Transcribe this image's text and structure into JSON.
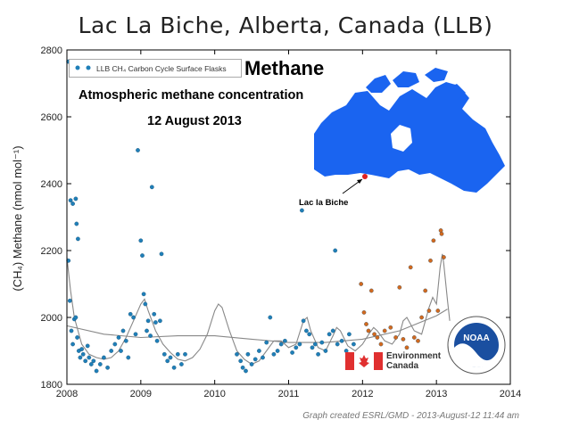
{
  "title": "Lac La Biche, Alberta, Canada (LLB)",
  "annotation": {
    "heading": "Methane",
    "subtitle": "Atmospheric methane concentration",
    "date": "12 August 2013"
  },
  "map": {
    "label": "Lac la Biche",
    "land_color": "#1a64f0"
  },
  "legend": {
    "label": "LLB CH₄ Carbon Cycle Surface Flasks"
  },
  "logos": {
    "env_canada_line1": "Environment",
    "env_canada_line2": "Canada",
    "noaa": "NOAA"
  },
  "credit": "Graph created ESRL/GMD - 2013-August-12 11:44 am",
  "colors": {
    "series1": "#1f7fb8",
    "series2": "#d2691e",
    "trend": "#888888"
  },
  "chart_data": {
    "type": "scatter",
    "title": "Lac La Biche, Alberta, Canada (LLB)",
    "xlabel": "",
    "ylabel": "(CH₄) Methane (nmol mol⁻¹)",
    "xlim": [
      2008,
      2014
    ],
    "ylim": [
      1800,
      2800
    ],
    "xticks": [
      2008,
      2009,
      2010,
      2011,
      2012,
      2013,
      2014
    ],
    "yticks": [
      1800,
      2000,
      2200,
      2400,
      2600,
      2800
    ],
    "grid": false,
    "legend_position": "top-left",
    "series": [
      {
        "name": "LLB CH₄ Carbon Cycle Surface Flasks",
        "color": "#1f7fb8",
        "points": [
          [
            2008.02,
            2765
          ],
          [
            2008.05,
            2350
          ],
          [
            2008.08,
            2340
          ],
          [
            2008.12,
            2355
          ],
          [
            2008.13,
            2280
          ],
          [
            2008.15,
            2235
          ],
          [
            2008.02,
            2170
          ],
          [
            2008.04,
            2050
          ],
          [
            2008.06,
            1960
          ],
          [
            2008.08,
            1920
          ],
          [
            2008.1,
            1995
          ],
          [
            2008.12,
            2000
          ],
          [
            2008.14,
            1940
          ],
          [
            2008.16,
            1900
          ],
          [
            2008.18,
            1880
          ],
          [
            2008.2,
            1905
          ],
          [
            2008.22,
            1890
          ],
          [
            2008.25,
            1870
          ],
          [
            2008.28,
            1915
          ],
          [
            2008.3,
            1880
          ],
          [
            2008.33,
            1860
          ],
          [
            2008.36,
            1870
          ],
          [
            2008.4,
            1840
          ],
          [
            2008.45,
            1860
          ],
          [
            2008.5,
            1880
          ],
          [
            2008.55,
            1850
          ],
          [
            2008.6,
            1900
          ],
          [
            2008.65,
            1920
          ],
          [
            2008.7,
            1940
          ],
          [
            2008.73,
            1900
          ],
          [
            2008.76,
            1960
          ],
          [
            2008.8,
            1930
          ],
          [
            2008.83,
            1880
          ],
          [
            2008.86,
            2010
          ],
          [
            2008.9,
            2000
          ],
          [
            2008.93,
            1950
          ],
          [
            2008.96,
            2500
          ],
          [
            2009.0,
            2230
          ],
          [
            2009.02,
            2185
          ],
          [
            2009.04,
            2070
          ],
          [
            2009.06,
            2040
          ],
          [
            2009.08,
            1960
          ],
          [
            2009.1,
            1990
          ],
          [
            2009.13,
            1945
          ],
          [
            2009.15,
            2390
          ],
          [
            2009.18,
            2010
          ],
          [
            2009.2,
            1985
          ],
          [
            2009.22,
            1930
          ],
          [
            2009.26,
            1990
          ],
          [
            2009.28,
            2190
          ],
          [
            2009.32,
            1890
          ],
          [
            2009.36,
            1870
          ],
          [
            2009.4,
            1880
          ],
          [
            2009.45,
            1850
          ],
          [
            2009.5,
            1890
          ],
          [
            2009.55,
            1860
          ],
          [
            2009.6,
            1890
          ],
          [
            2010.3,
            1890
          ],
          [
            2010.35,
            1870
          ],
          [
            2010.38,
            1850
          ],
          [
            2010.42,
            1840
          ],
          [
            2010.45,
            1890
          ],
          [
            2010.5,
            1860
          ],
          [
            2010.55,
            1875
          ],
          [
            2010.6,
            1900
          ],
          [
            2010.65,
            1880
          ],
          [
            2010.7,
            1925
          ],
          [
            2010.75,
            2000
          ],
          [
            2010.8,
            1890
          ],
          [
            2010.85,
            1900
          ],
          [
            2010.9,
            1920
          ],
          [
            2010.95,
            1930
          ],
          [
            2011.05,
            1895
          ],
          [
            2011.1,
            1910
          ],
          [
            2011.15,
            1920
          ],
          [
            2011.18,
            2320
          ],
          [
            2011.2,
            1990
          ],
          [
            2011.24,
            1960
          ],
          [
            2011.28,
            1950
          ],
          [
            2011.32,
            1910
          ],
          [
            2011.36,
            1920
          ],
          [
            2011.4,
            1890
          ],
          [
            2011.45,
            1925
          ],
          [
            2011.5,
            1900
          ],
          [
            2011.55,
            1950
          ],
          [
            2011.6,
            1960
          ],
          [
            2011.63,
            2200
          ],
          [
            2011.66,
            1920
          ],
          [
            2011.72,
            1930
          ],
          [
            2011.78,
            1900
          ],
          [
            2011.82,
            1950
          ],
          [
            2011.88,
            1920
          ],
          [
            2011.92,
            1880
          ]
        ]
      },
      {
        "name": "",
        "color": "#d2691e",
        "points": [
          [
            2011.98,
            2100
          ],
          [
            2012.02,
            2015
          ],
          [
            2012.05,
            1980
          ],
          [
            2012.08,
            1960
          ],
          [
            2012.12,
            2080
          ],
          [
            2012.16,
            1950
          ],
          [
            2012.2,
            1940
          ],
          [
            2012.25,
            1920
          ],
          [
            2012.3,
            1960
          ],
          [
            2012.38,
            1970
          ],
          [
            2012.45,
            1940
          ],
          [
            2012.5,
            2090
          ],
          [
            2012.55,
            1935
          ],
          [
            2012.6,
            1910
          ],
          [
            2012.65,
            2150
          ],
          [
            2012.7,
            1940
          ],
          [
            2012.75,
            1930
          ],
          [
            2012.8,
            2000
          ],
          [
            2012.85,
            2080
          ],
          [
            2012.9,
            2020
          ],
          [
            2012.92,
            2170
          ],
          [
            2012.96,
            2230
          ],
          [
            2013.02,
            2020
          ],
          [
            2013.06,
            2260
          ],
          [
            2013.07,
            2250
          ],
          [
            2013.1,
            2180
          ]
        ]
      }
    ],
    "trend": {
      "color": "#888888",
      "points": [
        [
          2008.0,
          2180
        ],
        [
          2008.05,
          2080
        ],
        [
          2008.1,
          2000
        ],
        [
          2008.2,
          1920
        ],
        [
          2008.3,
          1890
        ],
        [
          2008.4,
          1880
        ],
        [
          2008.5,
          1875
        ],
        [
          2008.6,
          1880
        ],
        [
          2008.7,
          1900
        ],
        [
          2008.8,
          1940
        ],
        [
          2008.9,
          1990
        ],
        [
          2009.0,
          2040
        ],
        [
          2009.05,
          2055
        ],
        [
          2009.1,
          2020
        ],
        [
          2009.2,
          1960
        ],
        [
          2009.3,
          1920
        ],
        [
          2009.4,
          1895
        ],
        [
          2009.5,
          1875
        ],
        [
          2009.6,
          1870
        ],
        [
          2009.7,
          1880
        ],
        [
          2009.8,
          1905
        ],
        [
          2009.9,
          1950
        ],
        [
          2010.0,
          2020
        ],
        [
          2010.05,
          2040
        ],
        [
          2010.1,
          2030
        ],
        [
          2010.2,
          1960
        ],
        [
          2010.3,
          1900
        ],
        [
          2010.4,
          1875
        ],
        [
          2010.5,
          1860
        ],
        [
          2010.6,
          1870
        ],
        [
          2010.7,
          1900
        ],
        [
          2010.8,
          1930
        ],
        [
          2010.9,
          1930
        ],
        [
          2011.0,
          1910
        ],
        [
          2011.1,
          1920
        ],
        [
          2011.2,
          1990
        ],
        [
          2011.25,
          2000
        ],
        [
          2011.3,
          1960
        ],
        [
          2011.4,
          1910
        ],
        [
          2011.5,
          1900
        ],
        [
          2011.6,
          1945
        ],
        [
          2011.65,
          1970
        ],
        [
          2011.7,
          1960
        ],
        [
          2011.8,
          1915
        ],
        [
          2011.9,
          1900
        ],
        [
          2012.0,
          1920
        ],
        [
          2012.1,
          1955
        ],
        [
          2012.15,
          1970
        ],
        [
          2012.2,
          1960
        ],
        [
          2012.3,
          1930
        ],
        [
          2012.4,
          1920
        ],
        [
          2012.5,
          1950
        ],
        [
          2012.55,
          1990
        ],
        [
          2012.6,
          2000
        ],
        [
          2012.7,
          1960
        ],
        [
          2012.8,
          1950
        ],
        [
          2012.9,
          2030
        ],
        [
          2012.95,
          2060
        ],
        [
          2013.0,
          2040
        ],
        [
          2013.05,
          2150
        ],
        [
          2013.08,
          2190
        ],
        [
          2013.1,
          2160
        ],
        [
          2013.15,
          2050
        ],
        [
          2013.18,
          1990
        ]
      ]
    },
    "smooth": {
      "color": "#888888",
      "points": [
        [
          2008.0,
          1975
        ],
        [
          2008.5,
          1950
        ],
        [
          2009.0,
          1940
        ],
        [
          2009.5,
          1945
        ],
        [
          2010.0,
          1945
        ],
        [
          2010.5,
          1935
        ],
        [
          2011.0,
          1925
        ],
        [
          2011.5,
          1925
        ],
        [
          2012.0,
          1935
        ],
        [
          2012.5,
          1960
        ],
        [
          2013.0,
          2005
        ],
        [
          2013.15,
          2025
        ]
      ]
    }
  }
}
